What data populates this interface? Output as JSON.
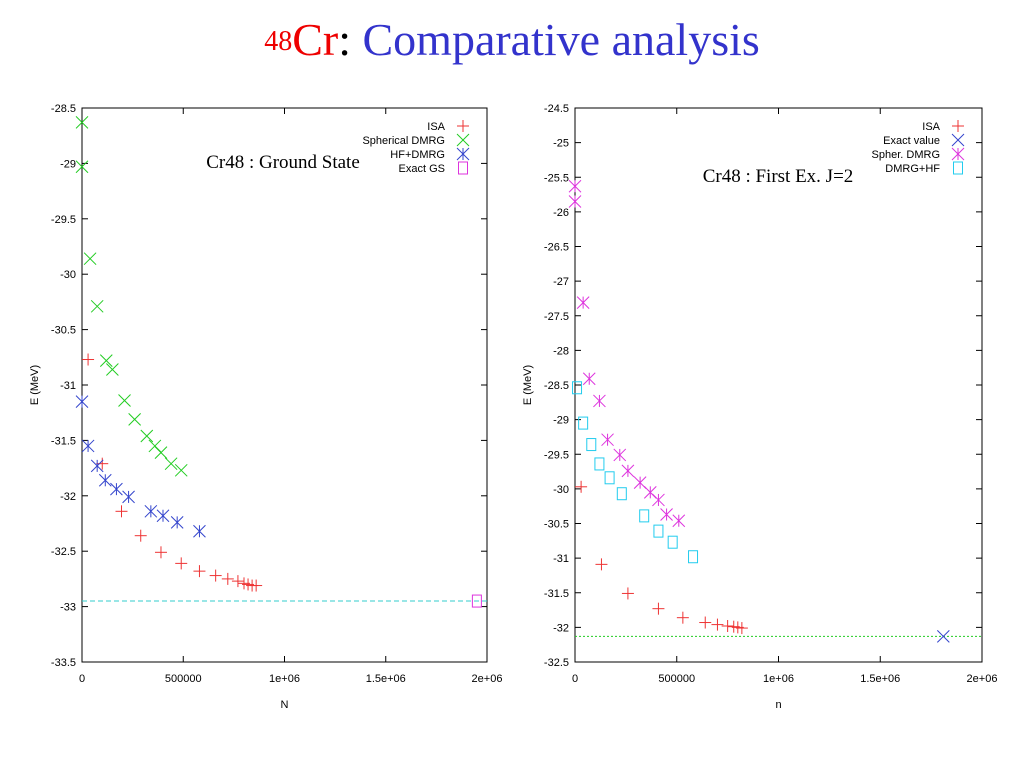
{
  "slide": {
    "title_sup": "48",
    "title_elem": "Cr",
    "title_colon": ":",
    "title_rest": "Comparative analysis"
  },
  "chart_data": [
    {
      "type": "scatter",
      "title": "Cr48 : Ground State",
      "xlabel": "N",
      "ylabel": "E (MeV)",
      "xlim": [
        0,
        2000000
      ],
      "ylim": [
        -33.5,
        -28.5
      ],
      "xticks": [
        "0",
        "500000",
        "1e+06",
        "1.5e+06",
        "2e+06"
      ],
      "yticks": [
        "-28.5",
        "-29",
        "-29.5",
        "-30",
        "-30.5",
        "-31",
        "-31.5",
        "-32",
        "-32.5",
        "-33",
        "-33.5"
      ],
      "legend_position": "top-right",
      "series": [
        {
          "name": "ISA",
          "marker": "plus",
          "color": "#ee3333",
          "x": [
            30000,
            100000,
            195000,
            290000,
            390000,
            490000,
            580000,
            660000,
            720000,
            770000,
            800000,
            820000,
            840000,
            860000
          ],
          "y": [
            -30.77,
            -31.71,
            -32.14,
            -32.36,
            -32.51,
            -32.61,
            -32.68,
            -32.72,
            -32.75,
            -32.77,
            -32.79,
            -32.8,
            -32.81,
            -32.81
          ]
        },
        {
          "name": "Spherical DMRG",
          "marker": "x",
          "color": "#22cc22",
          "x": [
            0,
            0,
            40000,
            75000,
            120000,
            150000,
            210000,
            260000,
            320000,
            360000,
            390000,
            440000,
            490000
          ],
          "y": [
            -28.63,
            -29.03,
            -29.86,
            -30.29,
            -30.78,
            -30.86,
            -31.14,
            -31.31,
            -31.46,
            -31.55,
            -31.61,
            -31.71,
            -31.77
          ]
        },
        {
          "name": "HF+DMRG",
          "marker": "asterisk",
          "color": "#3344cc",
          "x": [
            0,
            30000,
            75000,
            115000,
            170000,
            230000,
            340000,
            400000,
            470000,
            580000
          ],
          "y": [
            -31.15,
            -31.55,
            -31.73,
            -31.86,
            -31.94,
            -32.01,
            -32.14,
            -32.18,
            -32.24,
            -32.32
          ]
        },
        {
          "name": "Exact GS",
          "marker": "square",
          "color": "#dd33dd",
          "x": [
            1950000
          ],
          "y": [
            -32.95
          ]
        }
      ],
      "reference_line": {
        "y": -32.95,
        "color": "#33cccc",
        "style": "dashed"
      }
    },
    {
      "type": "scatter",
      "title": "Cr48 : First Ex. J=2",
      "xlabel": "n",
      "ylabel": "E (MeV)",
      "xlim": [
        0,
        2000000
      ],
      "ylim": [
        -32.5,
        -24.5
      ],
      "xticks": [
        "0",
        "500000",
        "1e+06",
        "1.5e+06",
        "2e+06"
      ],
      "yticks": [
        "-24.5",
        "-25",
        "-25.5",
        "-26",
        "-26.5",
        "-27",
        "-27.5",
        "-28",
        "-28.5",
        "-29",
        "-29.5",
        "-30",
        "-30.5",
        "-31",
        "-31.5",
        "-32",
        "-32.5"
      ],
      "legend_position": "top-right",
      "series": [
        {
          "name": "ISA",
          "marker": "plus",
          "color": "#ee3333",
          "x": [
            30000,
            130000,
            260000,
            410000,
            530000,
            640000,
            700000,
            750000,
            780000,
            800000,
            820000
          ],
          "y": [
            -29.97,
            -31.09,
            -31.51,
            -31.73,
            -31.86,
            -31.93,
            -31.96,
            -31.98,
            -31.99,
            -32.0,
            -32.01
          ]
        },
        {
          "name": "Exact value",
          "marker": "x",
          "color": "#3344cc",
          "x": [
            1810000
          ],
          "y": [
            -32.13
          ]
        },
        {
          "name": "Spher. DMRG",
          "marker": "asterisk",
          "color": "#dd33dd",
          "x": [
            0,
            0,
            40000,
            70000,
            120000,
            160000,
            220000,
            260000,
            320000,
            370000,
            410000,
            450000,
            510000
          ],
          "y": [
            -25.63,
            -25.85,
            -27.31,
            -28.41,
            -28.73,
            -29.29,
            -29.51,
            -29.74,
            -29.91,
            -30.05,
            -30.16,
            -30.37,
            -30.46
          ]
        },
        {
          "name": "DMRG+HF",
          "marker": "square",
          "color": "#22ccee",
          "x": [
            10000,
            40000,
            80000,
            120000,
            170000,
            230000,
            340000,
            410000,
            480000,
            580000
          ],
          "y": [
            -28.54,
            -29.05,
            -29.36,
            -29.64,
            -29.84,
            -30.07,
            -30.39,
            -30.61,
            -30.77,
            -30.98
          ]
        }
      ],
      "reference_line": {
        "y": -32.13,
        "color": "#22cc22",
        "style": "dotted"
      }
    }
  ]
}
